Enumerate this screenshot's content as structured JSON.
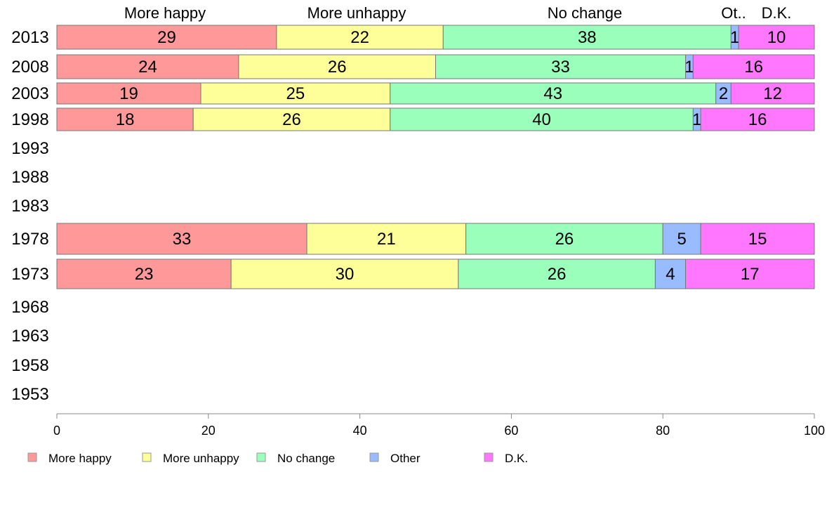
{
  "chart_data": {
    "type": "bar",
    "orientation": "horizontal",
    "stacked": true,
    "categories": [
      "2013",
      "2008",
      "2003",
      "1998",
      "1993",
      "1988",
      "1983",
      "1978",
      "1973",
      "1968",
      "1963",
      "1958",
      "1953"
    ],
    "series": [
      {
        "name": "More happy",
        "color": "#ff9999",
        "values": [
          29,
          24,
          19,
          18,
          null,
          null,
          null,
          33,
          23,
          null,
          null,
          null,
          null
        ]
      },
      {
        "name": "More unhappy",
        "color": "#ffff99",
        "values": [
          22,
          26,
          25,
          26,
          null,
          null,
          null,
          21,
          30,
          null,
          null,
          null,
          null
        ]
      },
      {
        "name": "No change",
        "color": "#99ffbb",
        "values": [
          38,
          33,
          43,
          40,
          null,
          null,
          null,
          26,
          26,
          null,
          null,
          null,
          null
        ]
      },
      {
        "name": "Other",
        "color": "#99bbff",
        "values": [
          1,
          1,
          2,
          1,
          null,
          null,
          null,
          5,
          4,
          null,
          null,
          null,
          null
        ]
      },
      {
        "name": "D.K.",
        "color": "#ff77ff",
        "values": [
          10,
          16,
          12,
          16,
          null,
          null,
          null,
          15,
          17,
          null,
          null,
          null,
          null
        ]
      }
    ],
    "column_headers": [
      "More happy",
      "More unhappy",
      "No change",
      "Ot..",
      "D.K."
    ],
    "xlim": [
      0,
      100
    ],
    "xticks": [
      "0",
      "20",
      "40",
      "60",
      "80",
      "100"
    ],
    "legend": {
      "position": "bottom",
      "entries": [
        "More happy",
        "More unhappy",
        "No change",
        "Other",
        "D.K."
      ]
    },
    "grid": false
  }
}
